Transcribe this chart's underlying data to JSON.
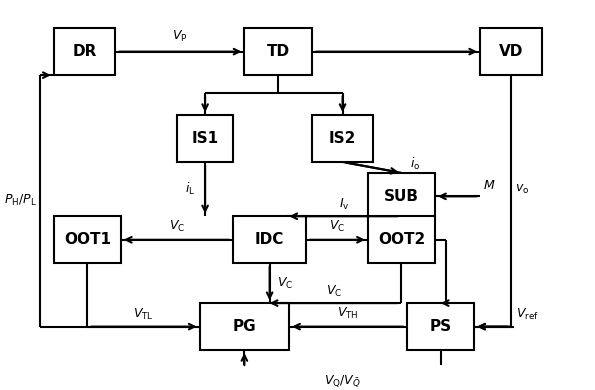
{
  "blocks": {
    "DR": [
      0.04,
      0.8,
      0.11,
      0.13
    ],
    "TD": [
      0.38,
      0.8,
      0.12,
      0.13
    ],
    "VD": [
      0.8,
      0.8,
      0.11,
      0.13
    ],
    "IS1": [
      0.26,
      0.56,
      0.1,
      0.13
    ],
    "IS2": [
      0.5,
      0.56,
      0.11,
      0.13
    ],
    "SUB": [
      0.6,
      0.4,
      0.12,
      0.13
    ],
    "OOT1": [
      0.04,
      0.28,
      0.12,
      0.13
    ],
    "IDC": [
      0.36,
      0.28,
      0.13,
      0.13
    ],
    "OOT2": [
      0.6,
      0.28,
      0.12,
      0.13
    ],
    "PG": [
      0.3,
      0.04,
      0.16,
      0.13
    ],
    "PS": [
      0.67,
      0.04,
      0.12,
      0.13
    ]
  },
  "bg_color": "#ffffff",
  "box_color": "#000000",
  "line_color": "#000000",
  "font_color": "#000000",
  "lw": 1.5,
  "fontsize": 9
}
